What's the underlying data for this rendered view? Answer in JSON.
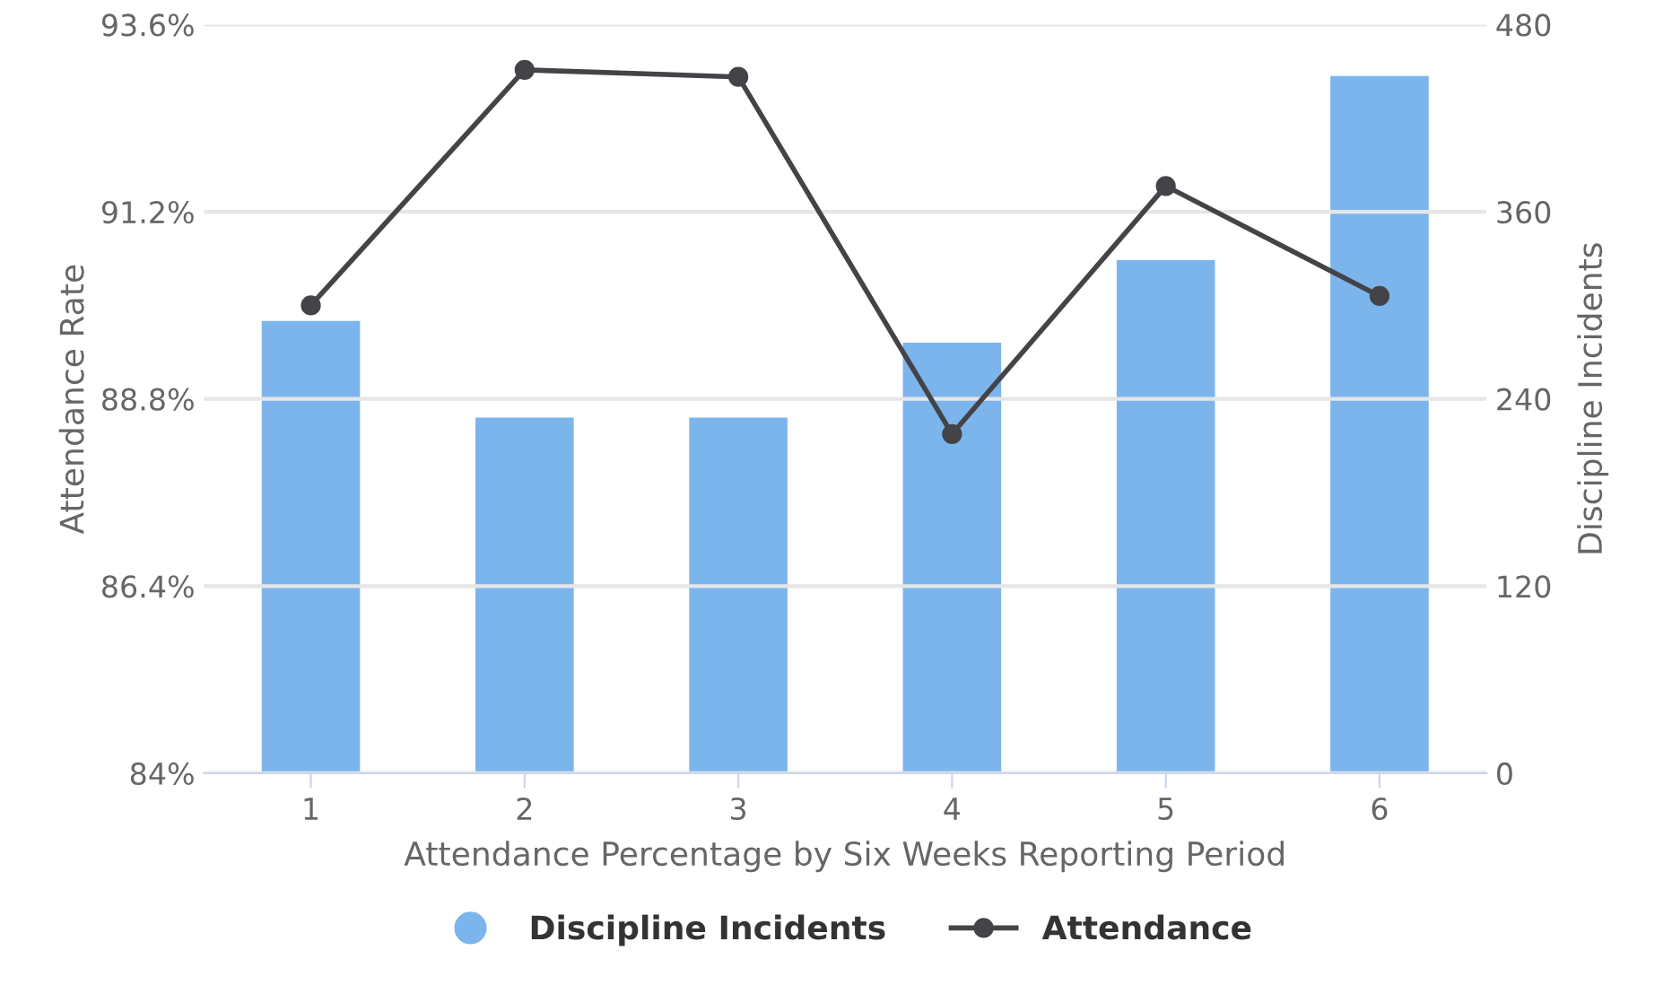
{
  "chart_data": {
    "type": "bar",
    "xlabel": "Attendance Percentage by Six Weeks Reporting Period",
    "ylabel": "Attendance Rate",
    "y2label": "Discipline Incidents",
    "categories": [
      "1",
      "2",
      "3",
      "4",
      "5",
      "6"
    ],
    "series": [
      {
        "name": "Discipline Incidents",
        "axis": "y2",
        "color": "#7cb5ec",
        "values": [
          290,
          228,
          228,
          276,
          329,
          447
        ]
      },
      {
        "name": "Attendance",
        "type": "line",
        "axis": "y",
        "color": "#434348",
        "marker": "circle",
        "values": [
          90.0,
          93.02,
          92.93,
          88.35,
          91.53,
          90.12
        ]
      }
    ],
    "ylim": [
      84,
      93.6
    ],
    "yticks": [
      {
        "value": 84,
        "label": "84%"
      },
      {
        "value": 86.4,
        "label": "86.4%"
      },
      {
        "value": 88.8,
        "label": "88.8%"
      },
      {
        "value": 91.2,
        "label": "91.2%"
      },
      {
        "value": 93.6,
        "label": "93.6%"
      }
    ],
    "y2lim": [
      0,
      480
    ],
    "y2ticks": [
      0,
      120,
      240,
      360,
      480
    ],
    "grid": "y",
    "legend": "bottom"
  }
}
